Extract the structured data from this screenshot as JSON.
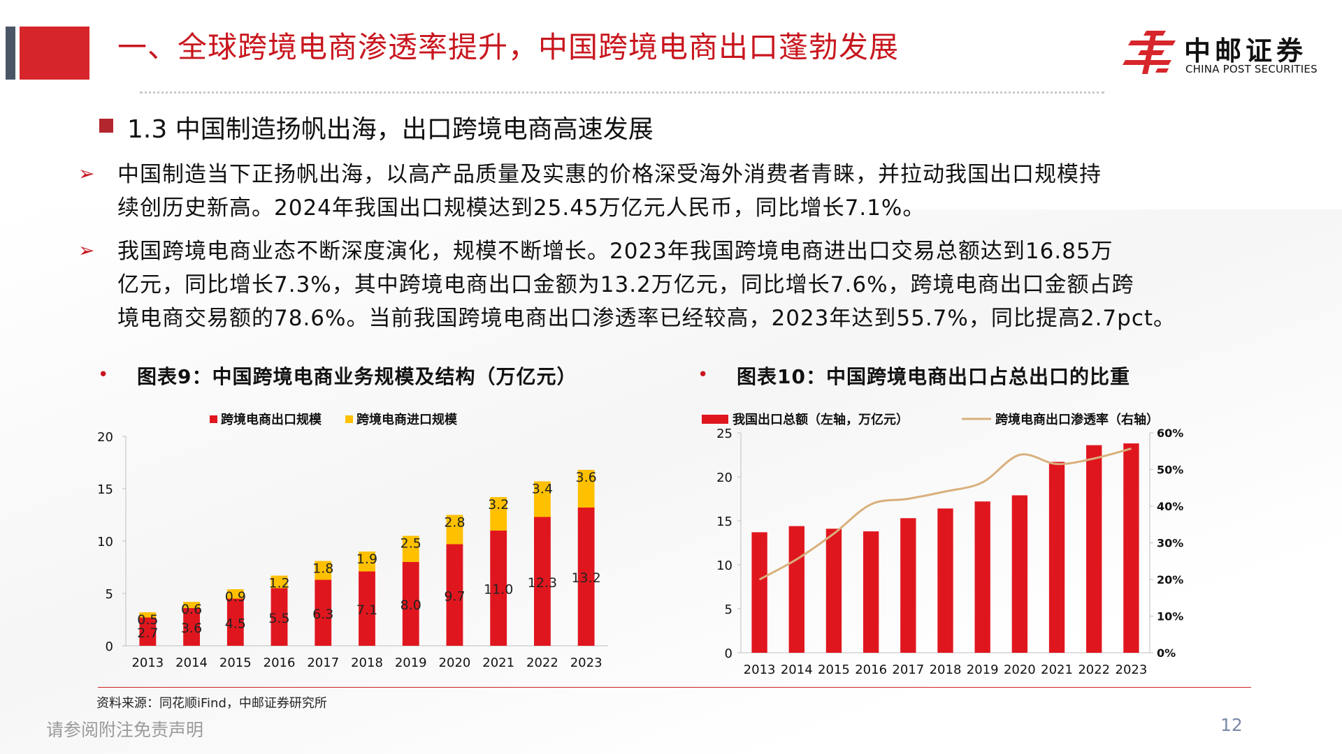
{
  "header": {
    "title": "一、全球跨境电商渗透率提升，中国跨境电商出口蓬勃发展",
    "logo_cn": "中邮证券",
    "logo_en": "CHINA POST SECURITIES"
  },
  "section": {
    "title": "1.3 中国制造扬帆出海，出口跨境电商高速发展"
  },
  "bullets": [
    {
      "lines": [
        "中国制造当下正扬帆出海，以高产品质量及实惠的价格深受海外消费者青睐，并拉动我国出口规模持",
        "续创历史新高。2024年我国出口规模达到25.45万亿元人民币，同比增长7.1%。"
      ]
    },
    {
      "lines": [
        "我国跨境电商业态不断深度演化，规模不断增长。2023年我国跨境电商进出口交易总额达到16.85万",
        "亿元，同比增长7.3%，其中跨境电商出口金额为13.2万亿元，同比增长7.6%，跨境电商出口金额占跨",
        "境电商交易额的78.6%。当前我国跨境电商出口渗透率已经较高，2023年达到55.7%，同比提高2.7pct。"
      ]
    }
  ],
  "figure_titles": {
    "fig9": "图表9：中国跨境电商业务规模及结构（万亿元）",
    "fig10": "图表10：中国跨境电商出口占总出口的比重"
  },
  "chart_data": [
    {
      "type": "bar",
      "stacked": true,
      "categories": [
        "2013",
        "2014",
        "2015",
        "2016",
        "2017",
        "2018",
        "2019",
        "2020",
        "2021",
        "2022",
        "2023"
      ],
      "series": [
        {
          "name": "跨境电商出口规模",
          "color": "#e0161e",
          "values": [
            2.7,
            3.6,
            4.5,
            5.5,
            6.3,
            7.1,
            8.0,
            9.7,
            11.0,
            12.3,
            13.2
          ],
          "labels": [
            "2.7",
            "3.6",
            "4.5",
            "5.5",
            "6.3",
            "7.1",
            "8.0",
            "9.7",
            "11.0",
            "12.3",
            "13.2"
          ]
        },
        {
          "name": "跨境电商进口规模",
          "color": "#ffc000",
          "values": [
            0.5,
            0.6,
            0.9,
            1.2,
            1.8,
            1.9,
            2.5,
            2.8,
            3.2,
            3.4,
            3.6
          ],
          "labels": [
            "0.5",
            "0.6",
            "0.9",
            "1.2",
            "1.8",
            "1.9",
            "2.5",
            "2.8",
            "3.2",
            "3.4",
            "3.6"
          ]
        }
      ],
      "ylim": [
        0,
        20
      ],
      "yticks": [
        "0",
        "5",
        "10",
        "15",
        "20"
      ],
      "legend": "top"
    },
    {
      "type": "bar",
      "categories": [
        "2013",
        "2014",
        "2015",
        "2016",
        "2017",
        "2018",
        "2019",
        "2020",
        "2021",
        "2022",
        "2023"
      ],
      "series": [
        {
          "name": "我国出口总额（左轴，万亿元）",
          "type": "bar",
          "axis": "left",
          "color": "#e0161e",
          "values": [
            13.7,
            14.4,
            14.1,
            13.8,
            15.3,
            16.4,
            17.2,
            17.9,
            21.7,
            23.6,
            23.8
          ]
        },
        {
          "name": "跨境电商出口渗透率（右轴）",
          "type": "line",
          "axis": "right",
          "color": "#d9b07c",
          "values": [
            20.0,
            25.5,
            32.5,
            40.5,
            42.0,
            44.0,
            46.5,
            54.0,
            51.5,
            53.0,
            55.7
          ]
        }
      ],
      "ylim_left": [
        0,
        25
      ],
      "yticks_left": [
        "0",
        "5",
        "10",
        "15",
        "20",
        "25"
      ],
      "ylim_right": [
        0,
        60
      ],
      "yticks_right": [
        "0%",
        "10%",
        "20%",
        "30%",
        "40%",
        "50%",
        "60%"
      ],
      "legend": "top"
    }
  ],
  "footer": {
    "source": "资料来源：同花顺iFind，中邮证券研究所",
    "disclaimer": "请参阅附注免责声明",
    "page": "12"
  }
}
